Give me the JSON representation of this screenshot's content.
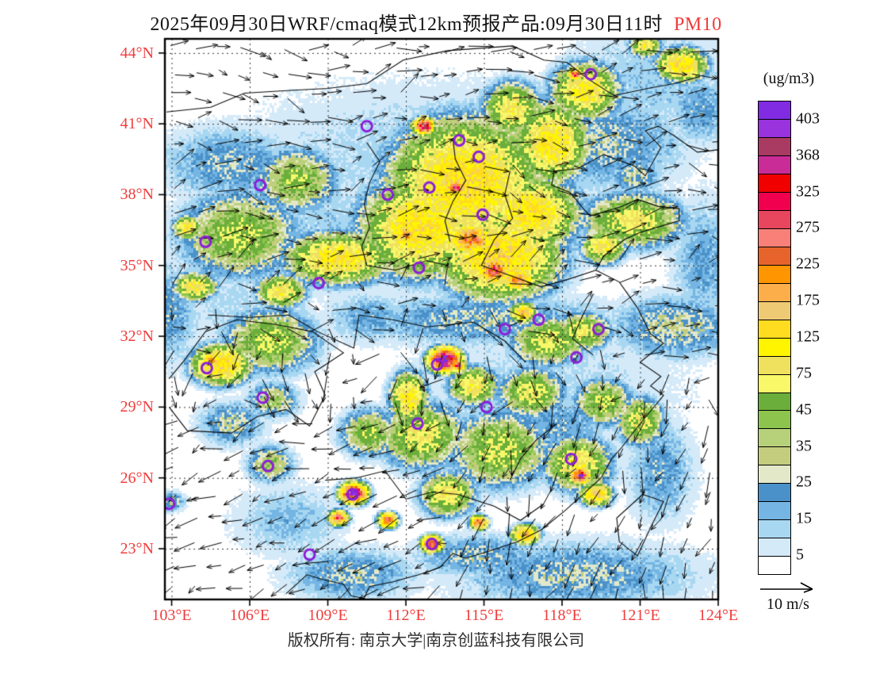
{
  "title": {
    "prefix": "2025年09月30日WRF/cmaq模式12km预报产品:09月30日11时",
    "pollutant": "PM10"
  },
  "colorbar": {
    "unit": "(ug/m3)",
    "tick_labels": [
      "403",
      "368",
      "325",
      "275",
      "225",
      "175",
      "125",
      "75",
      "45",
      "35",
      "25",
      "15",
      "5"
    ]
  },
  "axes": {
    "lat_tick_labels": [
      "44°N",
      "41°N",
      "38°N",
      "35°N",
      "32°N",
      "29°N",
      "26°N",
      "23°N"
    ],
    "lon_tick_labels": [
      "103°E",
      "106°E",
      "109°E",
      "112°E",
      "115°E",
      "118°E",
      "121°E",
      "124°E"
    ]
  },
  "wind_legend": {
    "label": "10 m/s"
  },
  "footer": {
    "text": "版权所有: 南京大学|南京创蓝科技有限公司"
  },
  "colors": {
    "axis_label": "#f03c3c",
    "pollutant_label": "#f03c3c",
    "title_text": "#141414",
    "footer_text": "#2e2e2e",
    "marker": "#8b1fd8",
    "outline": "#0a0a0a",
    "grid": "#333333",
    "wind_arrow": "#000000"
  },
  "chart_data": {
    "type": "heatmap",
    "title": "2025年09月30日WRF/cmaq模式12km预报产品:09月30日11时 PM10",
    "pollutant": "PM10",
    "units": "ug/m3",
    "xlabel_ticks": [
      103,
      106,
      109,
      112,
      115,
      118,
      121,
      124
    ],
    "ylabel_ticks": [
      44,
      41,
      38,
      35,
      32,
      29,
      26,
      23
    ],
    "lon_range": [
      102.74,
      124.0
    ],
    "lat_range": [
      20.85,
      44.6
    ],
    "legend_labeled_levels": [
      403,
      368,
      325,
      275,
      225,
      175,
      125,
      75,
      45,
      35,
      25,
      15,
      5
    ],
    "contour_levels": [
      5,
      10,
      15,
      20,
      25,
      30,
      35,
      40,
      45,
      60,
      75,
      100,
      125,
      150,
      175,
      200,
      225,
      250,
      275,
      300,
      325,
      346,
      368,
      385,
      403
    ],
    "level_colors": [
      "#FFFFFF",
      "#D5EAF9",
      "#A8D7F1",
      "#74B5E3",
      "#4B91C9",
      "#E3E8C9",
      "#C4CD7D",
      "#B7D17A",
      "#8CC44E",
      "#6BAE3B",
      "#F8F869",
      "#EFE05E",
      "#FFF500",
      "#FFDC1F",
      "#EFCA74",
      "#FBAE4A",
      "#FF9500",
      "#E6632B",
      "#F98078",
      "#E8455E",
      "#F20050",
      "#F10000",
      "#C92C96",
      "#A93B63",
      "#9933DD",
      "#812BE2"
    ],
    "wind_reference_mps": 10,
    "city_markers_lonlat": [
      [
        110.5,
        40.9
      ],
      [
        114.05,
        40.3
      ],
      [
        114.8,
        39.6
      ],
      [
        112.9,
        38.3
      ],
      [
        111.3,
        38.0
      ],
      [
        106.4,
        38.4
      ],
      [
        104.3,
        36.0
      ],
      [
        112.5,
        34.9
      ],
      [
        108.65,
        34.25
      ],
      [
        119.1,
        43.1
      ],
      [
        114.95,
        37.15
      ],
      [
        117.1,
        32.7
      ],
      [
        115.8,
        32.3
      ],
      [
        119.4,
        32.3
      ],
      [
        118.55,
        31.1
      ],
      [
        104.35,
        30.65
      ],
      [
        106.5,
        29.4
      ],
      [
        115.1,
        29.0
      ],
      [
        112.45,
        28.3
      ],
      [
        106.7,
        26.5
      ],
      [
        102.9,
        24.9
      ],
      [
        109.95,
        25.3
      ],
      [
        113.0,
        23.2
      ],
      [
        108.3,
        22.75
      ],
      [
        118.35,
        26.8
      ],
      [
        113.2,
        30.8
      ]
    ],
    "pm10_blobs": [
      [
        113,
        39.5,
        13,
        8,
        3.6
      ],
      [
        117.5,
        30.2,
        11,
        6,
        3.5
      ],
      [
        105.5,
        33.5,
        12,
        2.5,
        2
      ],
      [
        121.5,
        42.8,
        14,
        3.5,
        2.8
      ],
      [
        109,
        36.5,
        13,
        4,
        3
      ],
      [
        115,
        32.7,
        26,
        5,
        1.1
      ],
      [
        122.3,
        32.4,
        30,
        2.4,
        1.3
      ],
      [
        119.5,
        40.2,
        26,
        3.2,
        2
      ],
      [
        105.2,
        39.3,
        24,
        2.6,
        1.6
      ],
      [
        102.9,
        33,
        22,
        1.2,
        2.2
      ],
      [
        121.8,
        26.3,
        22,
        1.3,
        2.2
      ],
      [
        118.5,
        21.9,
        26,
        4.5,
        1.4
      ],
      [
        109.9,
        21.9,
        26,
        2.4,
        1.1
      ],
      [
        123.4,
        35.2,
        20,
        1.2,
        2.8
      ],
      [
        114.7,
        22.7,
        26,
        2.4,
        0.9
      ],
      [
        107.5,
        24.2,
        16,
        2.2,
        1.6
      ],
      [
        123.3,
        41.6,
        22,
        1.2,
        1.5
      ],
      [
        110.6,
        32.8,
        20,
        1.7,
        1.1
      ],
      [
        117.8,
        28.2,
        22,
        2,
        1.5
      ],
      [
        120.8,
        38.8,
        30,
        1,
        0.8
      ],
      [
        114.3,
        38.5,
        135,
        2.4,
        2.2
      ],
      [
        115.6,
        35.4,
        140,
        1.9,
        1.5
      ],
      [
        112.6,
        36.6,
        125,
        1.9,
        1.7
      ],
      [
        109.4,
        35.3,
        115,
        1.7,
        0.9
      ],
      [
        116.8,
        37.2,
        125,
        1.5,
        1.3
      ],
      [
        117.6,
        40.2,
        115,
        1.2,
        1.4
      ],
      [
        118.9,
        42.4,
        105,
        1.1,
        1
      ],
      [
        122.6,
        43.5,
        130,
        0.8,
        0.6
      ],
      [
        121.2,
        44.3,
        90,
        0.5,
        0.4
      ],
      [
        116.1,
        41.6,
        85,
        1,
        1
      ],
      [
        120.7,
        36.9,
        75,
        1.7,
        1
      ],
      [
        119.6,
        35.8,
        100,
        0.7,
        0.6
      ],
      [
        107.2,
        33.9,
        90,
        0.8,
        0.6
      ],
      [
        114.5,
        36.1,
        240,
        0.7,
        0.55
      ],
      [
        115.4,
        34.8,
        260,
        0.55,
        0.45
      ],
      [
        116.3,
        34.4,
        210,
        0.5,
        0.4
      ],
      [
        113.9,
        38.3,
        290,
        0.32,
        0.28
      ],
      [
        112.7,
        40.9,
        330,
        0.34,
        0.28
      ],
      [
        112,
        36.3,
        190,
        0.4,
        0.35
      ],
      [
        118.5,
        43.1,
        280,
        0.25,
        0.22
      ],
      [
        116.5,
        33,
        160,
        0.4,
        0.35
      ],
      [
        105.6,
        36.3,
        60,
        2,
        1.6
      ],
      [
        103.9,
        34.1,
        95,
        0.7,
        0.5
      ],
      [
        103.6,
        36.6,
        105,
        0.45,
        0.4
      ],
      [
        107.8,
        38.6,
        55,
        1.4,
        1.2
      ],
      [
        104.9,
        30.8,
        135,
        0.95,
        0.7
      ],
      [
        104.5,
        31,
        195,
        0.3,
        0.25
      ],
      [
        106.8,
        31.8,
        60,
        1.6,
        1.2
      ],
      [
        106.9,
        29.3,
        40,
        0.9,
        0.7
      ],
      [
        105.3,
        28.3,
        30,
        1.2,
        0.9
      ],
      [
        106.8,
        26.6,
        45,
        0.8,
        0.7
      ],
      [
        103,
        25,
        30,
        0.5,
        0.4
      ],
      [
        112.6,
        27.8,
        75,
        1.4,
        1.2
      ],
      [
        112.1,
        29.4,
        112,
        0.6,
        0.9
      ],
      [
        115.6,
        27.2,
        65,
        1.7,
        1.4
      ],
      [
        118.6,
        26.6,
        85,
        1.1,
        1
      ],
      [
        110.6,
        27.9,
        55,
        1,
        0.9
      ],
      [
        113.6,
        25.3,
        85,
        0.9,
        0.8
      ],
      [
        116.8,
        29.6,
        70,
        1.1,
        0.9
      ],
      [
        114.6,
        29.9,
        88,
        0.8,
        0.7
      ],
      [
        119.6,
        29.2,
        60,
        1,
        0.9
      ],
      [
        121,
        28.4,
        72,
        0.8,
        0.9
      ],
      [
        117.5,
        31.8,
        70,
        1.3,
        0.9
      ],
      [
        118.8,
        32.2,
        75,
        0.9,
        0.7
      ],
      [
        113.5,
        31,
        430,
        0.5,
        0.4
      ],
      [
        114,
        30.75,
        320,
        0.22,
        0.18
      ],
      [
        110,
        25.35,
        390,
        0.42,
        0.35
      ],
      [
        118.7,
        26.1,
        340,
        0.33,
        0.28
      ],
      [
        113,
        23.2,
        310,
        0.33,
        0.28
      ],
      [
        109.4,
        24.3,
        260,
        0.3,
        0.26
      ],
      [
        111.3,
        24.2,
        250,
        0.3,
        0.26
      ],
      [
        114.8,
        24.1,
        230,
        0.28,
        0.24
      ],
      [
        116.6,
        23.6,
        160,
        0.45,
        0.35
      ],
      [
        119.3,
        25.3,
        150,
        0.5,
        0.4
      ]
    ],
    "outlines": [
      [
        [
          124,
          39.9
        ],
        [
          123.2,
          39.8
        ],
        [
          122.3,
          40.5
        ],
        [
          121.7,
          40.9
        ],
        [
          121.2,
          40.7
        ],
        [
          121.8,
          40
        ],
        [
          121.2,
          38.8
        ],
        [
          120.8,
          39.2
        ],
        [
          119.6,
          39.7
        ],
        [
          118.6,
          39.1
        ],
        [
          117.7,
          39
        ],
        [
          117.6,
          38.4
        ],
        [
          118.3,
          38.1
        ],
        [
          118.9,
          37.3
        ],
        [
          119.1,
          37.1
        ],
        [
          120.3,
          37.5
        ],
        [
          120.9,
          37.8
        ],
        [
          121.7,
          37.5
        ],
        [
          122.5,
          37.4
        ],
        [
          122.5,
          36.9
        ],
        [
          121,
          36.4
        ],
        [
          120.4,
          36.1
        ],
        [
          119.6,
          35.4
        ],
        [
          119.3,
          34.8
        ],
        [
          120.2,
          34.3
        ],
        [
          120.9,
          33.2
        ],
        [
          121.4,
          32.1
        ],
        [
          121.9,
          31.7
        ],
        [
          121,
          30.9
        ],
        [
          121.8,
          30.3
        ],
        [
          121.4,
          29.9
        ],
        [
          121.9,
          29.5
        ],
        [
          121,
          28.3
        ],
        [
          120.3,
          27.3
        ],
        [
          119.9,
          26.8
        ],
        [
          119.5,
          26
        ],
        [
          118.9,
          25.4
        ],
        [
          118.1,
          24.6
        ],
        [
          117.2,
          23.8
        ],
        [
          116.3,
          23.3
        ],
        [
          115.2,
          22.9
        ],
        [
          114.3,
          22.6
        ],
        [
          113.8,
          22.8
        ],
        [
          113.3,
          22.2
        ],
        [
          112.5,
          21.9
        ],
        [
          111.5,
          21.6
        ],
        [
          110.6,
          21.4
        ],
        [
          110.4,
          20.9
        ]
      ],
      [
        [
          110.4,
          20.9
        ],
        [
          109.9,
          21
        ],
        [
          109.6,
          21.5
        ],
        [
          108.8,
          21.7
        ],
        [
          108.2,
          21.9
        ],
        [
          107.4,
          21.1
        ]
      ],
      [
        [
          121.1,
          25.3
        ],
        [
          121.9,
          25
        ],
        [
          121.4,
          23.9
        ],
        [
          120.9,
          22.7
        ],
        [
          120.2,
          23.3
        ],
        [
          120.1,
          24.3
        ],
        [
          121.1,
          25.3
        ]
      ],
      [
        [
          110.5,
          40.2
        ],
        [
          111,
          39.4
        ],
        [
          110.6,
          38.5
        ],
        [
          110.4,
          37.6
        ],
        [
          110.6,
          36.6
        ],
        [
          110.3,
          35.8
        ],
        [
          110.5,
          35
        ],
        [
          111.6,
          34.8
        ],
        [
          112.8,
          35.2
        ],
        [
          113.6,
          35
        ]
      ],
      [
        [
          113.8,
          40.4
        ],
        [
          113.9,
          39.5
        ],
        [
          114.3,
          38.6
        ],
        [
          113.8,
          37.7
        ],
        [
          113.5,
          36.9
        ],
        [
          113.7,
          36
        ]
      ],
      [
        [
          116,
          39
        ],
        [
          115.8,
          38
        ],
        [
          116.1,
          37
        ],
        [
          115.4,
          36.1
        ],
        [
          114.9,
          35
        ],
        [
          116.2,
          34.5
        ],
        [
          117.2,
          34.1
        ],
        [
          118.2,
          34.4
        ],
        [
          119.3,
          34.8
        ]
      ],
      [
        [
          104.4,
          32.9
        ],
        [
          106,
          32.8
        ],
        [
          107.5,
          32.9
        ],
        [
          108.6,
          32.2
        ],
        [
          110,
          31.5
        ],
        [
          110.2,
          32.9
        ],
        [
          111.5,
          32.7
        ],
        [
          112.8,
          32.4
        ],
        [
          114.6,
          32.6
        ],
        [
          115.8,
          31.8
        ],
        [
          116.6,
          30.9
        ]
      ],
      [
        [
          108.9,
          25.9
        ],
        [
          110.1,
          26
        ],
        [
          111.2,
          26.3
        ],
        [
          112,
          25.1
        ],
        [
          113,
          25.4
        ],
        [
          114,
          25.3
        ],
        [
          115.4,
          24.8
        ],
        [
          116.4,
          24.2
        ],
        [
          117.3,
          24.9
        ]
      ],
      [
        [
          102.9,
          29
        ],
        [
          103.6,
          28
        ],
        [
          105.3,
          27.9
        ],
        [
          106.3,
          28.6
        ],
        [
          107.4,
          28.9
        ],
        [
          108.3,
          28.2
        ],
        [
          108.9,
          29.5
        ],
        [
          108.5,
          30.5
        ],
        [
          109.6,
          31.3
        ],
        [
          108.4,
          32.2
        ],
        [
          107,
          32.5
        ],
        [
          105.5,
          32.7
        ],
        [
          104.3,
          32.2
        ],
        [
          103.5,
          31
        ],
        [
          102.9,
          30.2
        ]
      ],
      [
        [
          102.8,
          41.5
        ],
        [
          104.5,
          41.7
        ],
        [
          105.8,
          42.3
        ],
        [
          107.3,
          42.4
        ],
        [
          109,
          42.5
        ],
        [
          110.5,
          42.7
        ],
        [
          111.9,
          43.7
        ],
        [
          113.6,
          44.1
        ],
        [
          116.1,
          44.3
        ],
        [
          117.3,
          43.7
        ],
        [
          118.2,
          43.6
        ],
        [
          119,
          42.9
        ],
        [
          120,
          42.2
        ],
        [
          121.3,
          42.5
        ],
        [
          122.3,
          42.7
        ],
        [
          123.3,
          43
        ]
      ],
      [
        [
          119.2,
          31.2
        ],
        [
          118.4,
          31.9
        ],
        [
          118.8,
          32.9
        ],
        [
          119.2,
          33.8
        ]
      ],
      [
        [
          117.8,
          28.3
        ],
        [
          117,
          27.6
        ],
        [
          116.4,
          26.8
        ],
        [
          116,
          25.9
        ]
      ]
    ]
  }
}
